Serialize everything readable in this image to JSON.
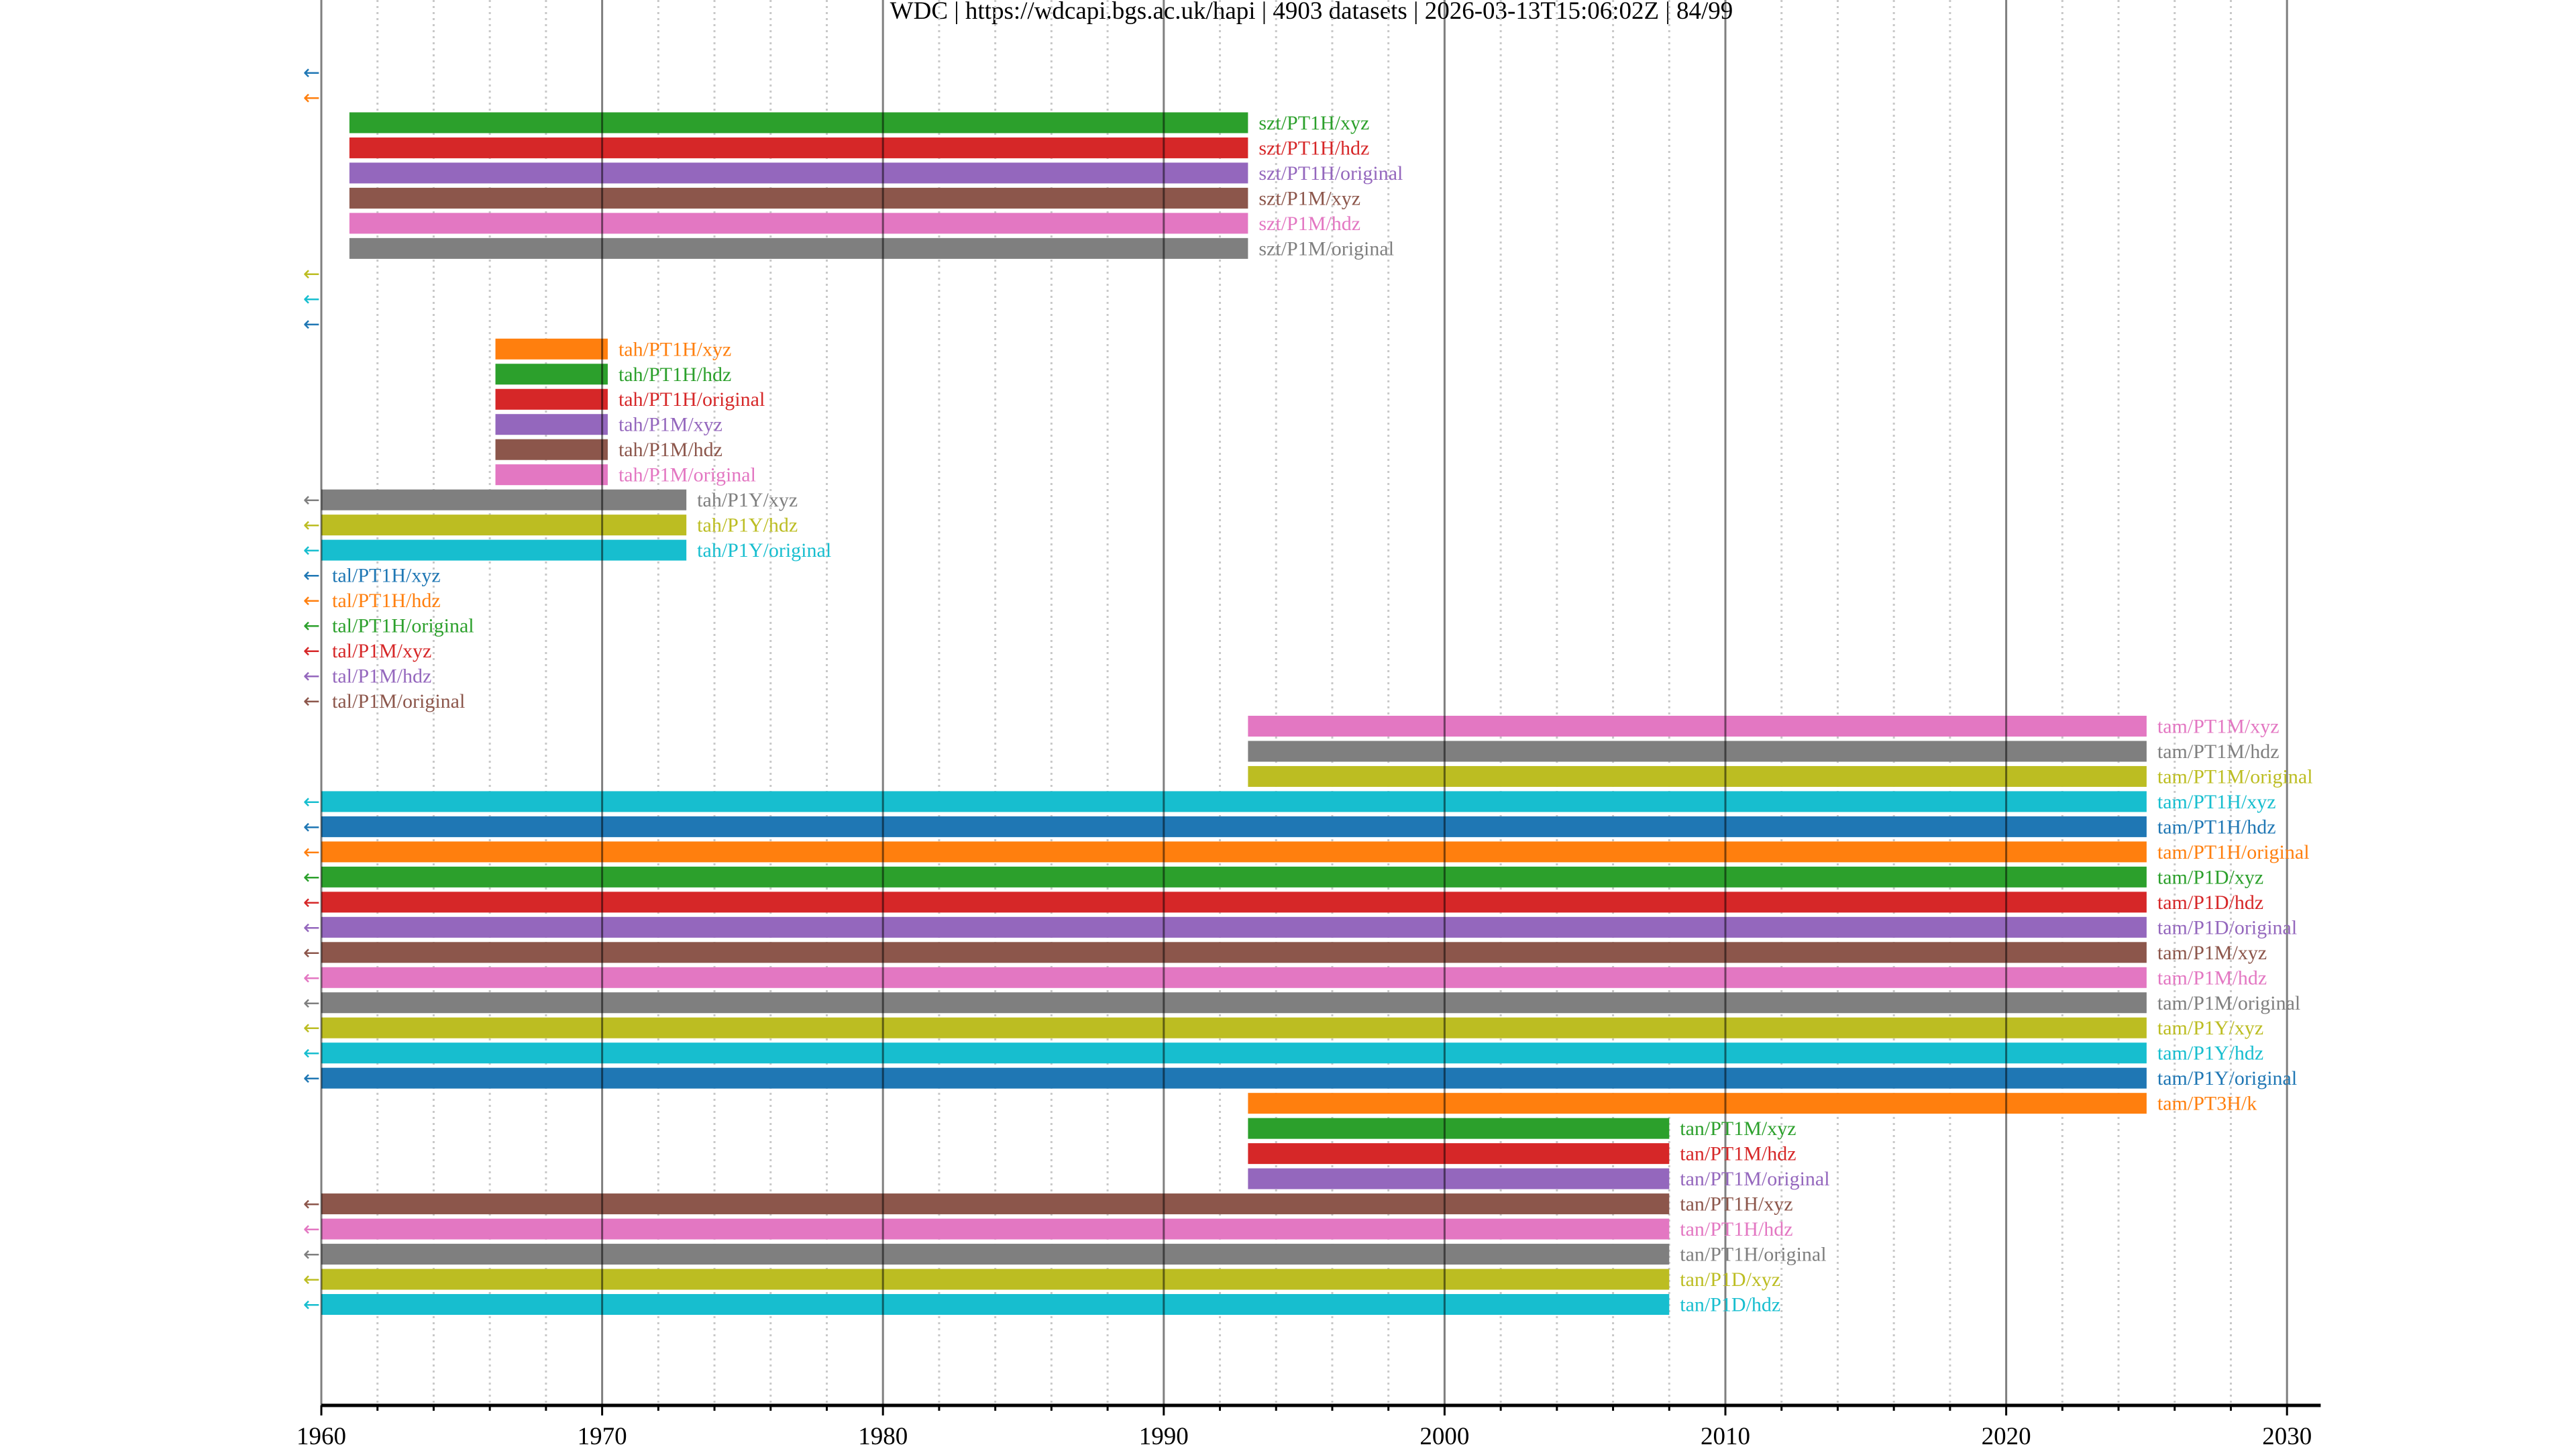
{
  "title": "WDC | https://wdcapi.bgs.ac.uk/hapi | 4903 datasets | 2026-03-13T15:06:02Z | 84/99",
  "chart_data": {
    "type": "gantt",
    "title": "WDC | https://wdcapi.bgs.ac.uk/hapi | 4903 datasets | 2026-03-13T15:06:02Z | 84/99",
    "xlabel": "",
    "ylabel": "",
    "xlim": [
      1960,
      2031.2
    ],
    "x_ticks": [
      "1960",
      "1970",
      "1980",
      "1990",
      "2000",
      "2010",
      "2020",
      "2030"
    ],
    "x_tick_values": [
      1960,
      1970,
      1980,
      1990,
      2000,
      2010,
      2020,
      2030
    ],
    "minor_tick_step_years": 2,
    "grid": true,
    "arrow_glyph": "←",
    "arrow_meaning": "start precedes 1960",
    "palette": [
      "#1f77b4",
      "#ff7f0e",
      "#2ca02c",
      "#d62728",
      "#9467bd",
      "#8c564b",
      "#e377c2",
      "#7f7f7f",
      "#bcbd22",
      "#17becf"
    ],
    "rows": [
      {
        "label": "",
        "color": "#1f77b4",
        "start": null,
        "end": null,
        "starts_before_xmin": true
      },
      {
        "label": "",
        "color": "#ff7f0e",
        "start": null,
        "end": null,
        "starts_before_xmin": true
      },
      {
        "label": "szt/PT1H/xyz",
        "color": "#2ca02c",
        "start": 1961.0,
        "end": 1993.0,
        "starts_before_xmin": false
      },
      {
        "label": "szt/PT1H/hdz",
        "color": "#d62728",
        "start": 1961.0,
        "end": 1993.0,
        "starts_before_xmin": false
      },
      {
        "label": "szt/PT1H/original",
        "color": "#9467bd",
        "start": 1961.0,
        "end": 1993.0,
        "starts_before_xmin": false
      },
      {
        "label": "szt/P1M/xyz",
        "color": "#8c564b",
        "start": 1961.0,
        "end": 1993.0,
        "starts_before_xmin": false
      },
      {
        "label": "szt/P1M/hdz",
        "color": "#e377c2",
        "start": 1961.0,
        "end": 1993.0,
        "starts_before_xmin": false
      },
      {
        "label": "szt/P1M/original",
        "color": "#7f7f7f",
        "start": 1961.0,
        "end": 1993.0,
        "starts_before_xmin": false
      },
      {
        "label": "",
        "color": "#bcbd22",
        "start": null,
        "end": null,
        "starts_before_xmin": true
      },
      {
        "label": "",
        "color": "#17becf",
        "start": null,
        "end": null,
        "starts_before_xmin": true
      },
      {
        "label": "",
        "color": "#1f77b4",
        "start": null,
        "end": null,
        "starts_before_xmin": true
      },
      {
        "label": "tah/PT1H/xyz",
        "color": "#ff7f0e",
        "start": 1966.2,
        "end": 1970.2,
        "starts_before_xmin": false
      },
      {
        "label": "tah/PT1H/hdz",
        "color": "#2ca02c",
        "start": 1966.2,
        "end": 1970.2,
        "starts_before_xmin": false
      },
      {
        "label": "tah/PT1H/original",
        "color": "#d62728",
        "start": 1966.2,
        "end": 1970.2,
        "starts_before_xmin": false
      },
      {
        "label": "tah/P1M/xyz",
        "color": "#9467bd",
        "start": 1966.2,
        "end": 1970.2,
        "starts_before_xmin": false
      },
      {
        "label": "tah/P1M/hdz",
        "color": "#8c564b",
        "start": 1966.2,
        "end": 1970.2,
        "starts_before_xmin": false
      },
      {
        "label": "tah/P1M/original",
        "color": "#e377c2",
        "start": 1966.2,
        "end": 1970.2,
        "starts_before_xmin": false
      },
      {
        "label": "tah/P1Y/xyz",
        "color": "#7f7f7f",
        "start": 1960,
        "end": 1973.0,
        "starts_before_xmin": true
      },
      {
        "label": "tah/P1Y/hdz",
        "color": "#bcbd22",
        "start": 1960,
        "end": 1973.0,
        "starts_before_xmin": true
      },
      {
        "label": "tah/P1Y/original",
        "color": "#17becf",
        "start": 1960,
        "end": 1973.0,
        "starts_before_xmin": true
      },
      {
        "label": "tal/PT1H/xyz",
        "color": "#1f77b4",
        "start": null,
        "end": null,
        "starts_before_xmin": true
      },
      {
        "label": "tal/PT1H/hdz",
        "color": "#ff7f0e",
        "start": null,
        "end": null,
        "starts_before_xmin": true
      },
      {
        "label": "tal/PT1H/original",
        "color": "#2ca02c",
        "start": null,
        "end": null,
        "starts_before_xmin": true
      },
      {
        "label": "tal/P1M/xyz",
        "color": "#d62728",
        "start": null,
        "end": null,
        "starts_before_xmin": true
      },
      {
        "label": "tal/P1M/hdz",
        "color": "#9467bd",
        "start": null,
        "end": null,
        "starts_before_xmin": true
      },
      {
        "label": "tal/P1M/original",
        "color": "#8c564b",
        "start": null,
        "end": null,
        "starts_before_xmin": true
      },
      {
        "label": "tam/PT1M/xyz",
        "color": "#e377c2",
        "start": 1993.0,
        "end": 2025.0,
        "starts_before_xmin": false
      },
      {
        "label": "tam/PT1M/hdz",
        "color": "#7f7f7f",
        "start": 1993.0,
        "end": 2025.0,
        "starts_before_xmin": false
      },
      {
        "label": "tam/PT1M/original",
        "color": "#bcbd22",
        "start": 1993.0,
        "end": 2025.0,
        "starts_before_xmin": false
      },
      {
        "label": "tam/PT1H/xyz",
        "color": "#17becf",
        "start": 1960,
        "end": 2025.0,
        "starts_before_xmin": true
      },
      {
        "label": "tam/PT1H/hdz",
        "color": "#1f77b4",
        "start": 1960,
        "end": 2025.0,
        "starts_before_xmin": true
      },
      {
        "label": "tam/PT1H/original",
        "color": "#ff7f0e",
        "start": 1960,
        "end": 2025.0,
        "starts_before_xmin": true
      },
      {
        "label": "tam/P1D/xyz",
        "color": "#2ca02c",
        "start": 1960,
        "end": 2025.0,
        "starts_before_xmin": true
      },
      {
        "label": "tam/P1D/hdz",
        "color": "#d62728",
        "start": 1960,
        "end": 2025.0,
        "starts_before_xmin": true
      },
      {
        "label": "tam/P1D/original",
        "color": "#9467bd",
        "start": 1960,
        "end": 2025.0,
        "starts_before_xmin": true
      },
      {
        "label": "tam/P1M/xyz",
        "color": "#8c564b",
        "start": 1960,
        "end": 2025.0,
        "starts_before_xmin": true
      },
      {
        "label": "tam/P1M/hdz",
        "color": "#e377c2",
        "start": 1960,
        "end": 2025.0,
        "starts_before_xmin": true
      },
      {
        "label": "tam/P1M/original",
        "color": "#7f7f7f",
        "start": 1960,
        "end": 2025.0,
        "starts_before_xmin": true
      },
      {
        "label": "tam/P1Y/xyz",
        "color": "#bcbd22",
        "start": 1960,
        "end": 2025.0,
        "starts_before_xmin": true
      },
      {
        "label": "tam/P1Y/hdz",
        "color": "#17becf",
        "start": 1960,
        "end": 2025.0,
        "starts_before_xmin": true
      },
      {
        "label": "tam/P1Y/original",
        "color": "#1f77b4",
        "start": 1960,
        "end": 2025.0,
        "starts_before_xmin": true
      },
      {
        "label": "tam/PT3H/k",
        "color": "#ff7f0e",
        "start": 1993.0,
        "end": 2025.0,
        "starts_before_xmin": false
      },
      {
        "label": "tan/PT1M/xyz",
        "color": "#2ca02c",
        "start": 1993.0,
        "end": 2008.0,
        "starts_before_xmin": false
      },
      {
        "label": "tan/PT1M/hdz",
        "color": "#d62728",
        "start": 1993.0,
        "end": 2008.0,
        "starts_before_xmin": false
      },
      {
        "label": "tan/PT1M/original",
        "color": "#9467bd",
        "start": 1993.0,
        "end": 2008.0,
        "starts_before_xmin": false
      },
      {
        "label": "tan/PT1H/xyz",
        "color": "#8c564b",
        "start": 1960,
        "end": 2008.0,
        "starts_before_xmin": true
      },
      {
        "label": "tan/PT1H/hdz",
        "color": "#e377c2",
        "start": 1960,
        "end": 2008.0,
        "starts_before_xmin": true
      },
      {
        "label": "tan/PT1H/original",
        "color": "#7f7f7f",
        "start": 1960,
        "end": 2008.0,
        "starts_before_xmin": true
      },
      {
        "label": "tan/P1D/xyz",
        "color": "#bcbd22",
        "start": 1960,
        "end": 2008.0,
        "starts_before_xmin": true
      },
      {
        "label": "tan/P1D/hdz",
        "color": "#17becf",
        "start": 1960,
        "end": 2008.0,
        "starts_before_xmin": true
      }
    ]
  }
}
